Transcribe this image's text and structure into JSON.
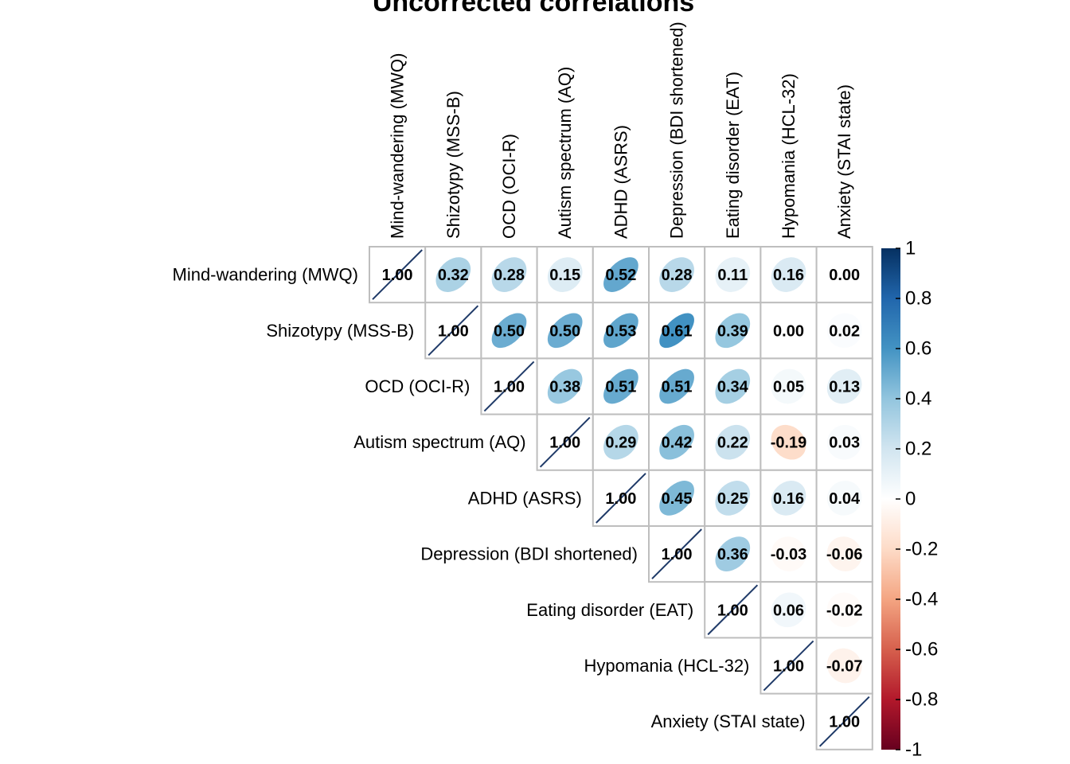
{
  "chart_data": {
    "type": "heatmap",
    "style": "corrplot-ellipse-upper-triangle",
    "title": "Uncorrected correlations",
    "variables": [
      "Mind-wandering (MWQ)",
      "Shizotypy (MSS-B)",
      "OCD (OCI-R)",
      "Autism spectrum (AQ)",
      "ADHD (ASRS)",
      "Depression (BDI shortened)",
      "Eating disorder (EAT)",
      "Hypomania (HCL-32)",
      "Anxiety (STAI state)"
    ],
    "matrix": [
      [
        1.0,
        0.32,
        0.28,
        0.15,
        0.52,
        0.28,
        0.11,
        0.16,
        0.0
      ],
      [
        null,
        1.0,
        0.5,
        0.5,
        0.53,
        0.61,
        0.39,
        0.0,
        0.02
      ],
      [
        null,
        null,
        1.0,
        0.38,
        0.51,
        0.51,
        0.34,
        0.05,
        0.13
      ],
      [
        null,
        null,
        null,
        1.0,
        0.29,
        0.42,
        0.22,
        -0.19,
        0.03
      ],
      [
        null,
        null,
        null,
        null,
        1.0,
        0.45,
        0.25,
        0.16,
        0.04
      ],
      [
        null,
        null,
        null,
        null,
        null,
        1.0,
        0.36,
        -0.03,
        -0.06
      ],
      [
        null,
        null,
        null,
        null,
        null,
        null,
        1.0,
        0.06,
        -0.02
      ],
      [
        null,
        null,
        null,
        null,
        null,
        null,
        null,
        1.0,
        -0.07
      ],
      [
        null,
        null,
        null,
        null,
        null,
        null,
        null,
        null,
        1.0
      ]
    ],
    "value_labels": [
      [
        "1.00",
        "0.32",
        "0.28",
        "0.15",
        "0.52",
        "0.28",
        "0.11",
        "0.16",
        "0.00"
      ],
      [
        null,
        "1.00",
        "0.50",
        "0.50",
        "0.53",
        "0.61",
        "0.39",
        "0.00",
        "0.02"
      ],
      [
        null,
        null,
        "1.00",
        "0.38",
        "0.51",
        "0.51",
        "0.34",
        "0.05",
        "0.13"
      ],
      [
        null,
        null,
        null,
        "1.00",
        "0.29",
        "0.42",
        "0.22",
        "-0.19",
        "0.03"
      ],
      [
        null,
        null,
        null,
        null,
        "1.00",
        "0.45",
        "0.25",
        "0.16",
        "0.04"
      ],
      [
        null,
        null,
        null,
        null,
        null,
        "1.00",
        "0.36",
        "-0.03",
        "-0.06"
      ],
      [
        null,
        null,
        null,
        null,
        null,
        null,
        "1.00",
        "0.06",
        "-0.02"
      ],
      [
        null,
        null,
        null,
        null,
        null,
        null,
        null,
        "1.00",
        "-0.07"
      ],
      [
        null,
        null,
        null,
        null,
        null,
        null,
        null,
        null,
        "1.00"
      ]
    ],
    "colorbar": {
      "range": [
        -1,
        1
      ],
      "ticks": [
        "1",
        "0.8",
        "0.6",
        "0.4",
        "0.2",
        "0",
        "-0.2",
        "-0.4",
        "-0.6",
        "-0.8",
        "-1"
      ],
      "tick_values": [
        1,
        0.8,
        0.6,
        0.4,
        0.2,
        0,
        -0.2,
        -0.4,
        -0.6,
        -0.8,
        -1
      ],
      "colors": [
        "#67001F",
        "#B2182B",
        "#D6604D",
        "#F4A582",
        "#FDDBC7",
        "#FFFFFF",
        "#D1E5F0",
        "#92C5DE",
        "#4393C3",
        "#2166AC",
        "#053061"
      ]
    },
    "grid_color": "#BEBEBE",
    "diagonal_line_color": "#1F3A68"
  }
}
